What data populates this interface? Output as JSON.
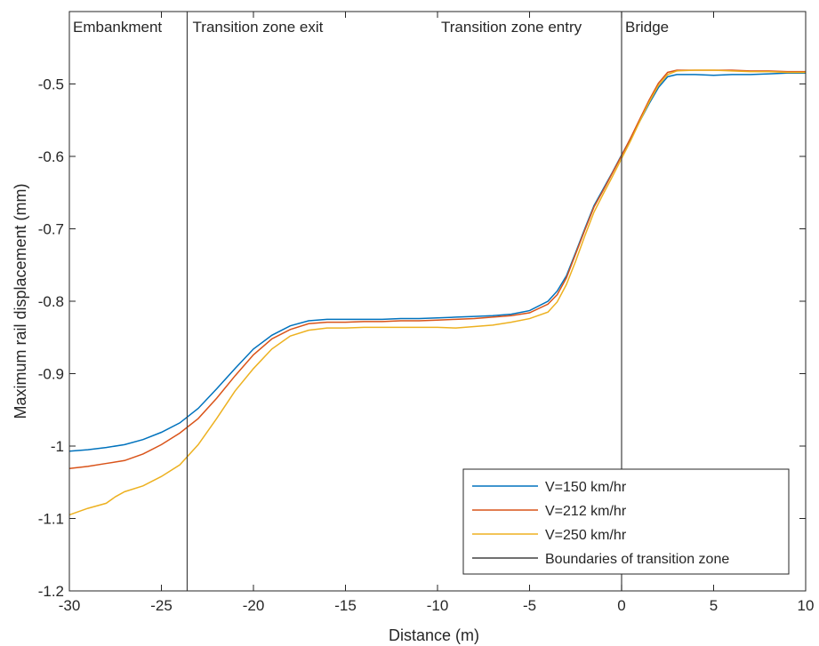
{
  "chart_data": {
    "type": "line",
    "title": "",
    "xlabel": "Distance (m)",
    "ylabel": "Maximum rail displacement (mm)",
    "xlim": [
      -30,
      10
    ],
    "ylim": [
      -1.2,
      -0.4
    ],
    "xticks": [
      -30,
      -25,
      -20,
      -15,
      -10,
      -5,
      0,
      5,
      10
    ],
    "yticks": [
      -1.2,
      -1.1,
      -1,
      -0.9,
      -0.8,
      -0.7,
      -0.6,
      -0.5
    ],
    "x_tick_labels": [
      "-30",
      "-25",
      "-20",
      "-15",
      "-10",
      "-5",
      "0",
      "5",
      "10"
    ],
    "y_tick_labels": [
      "-1.2",
      "-1.1",
      "-1",
      "-0.9",
      "-0.8",
      "-0.7",
      "-0.6",
      "-0.5"
    ],
    "grid": false,
    "legend_position": "bottom-right",
    "region_labels": [
      {
        "text": "Embankment",
        "x": -30
      },
      {
        "text": "Transition zone exit",
        "x": -23.5
      },
      {
        "text": "Transition zone entry",
        "x": -10
      },
      {
        "text": "Bridge",
        "x": 0
      }
    ],
    "boundaries": {
      "name": "Boundaries of transition zone",
      "color": "#404040",
      "x": [
        -23.6,
        0
      ]
    },
    "series": [
      {
        "name": "V=150 km/hr",
        "color": "#0072BD",
        "points": [
          [
            -30,
            -1.007
          ],
          [
            -29,
            -1.005
          ],
          [
            -28,
            -1.002
          ],
          [
            -27,
            -0.998
          ],
          [
            -26,
            -0.991
          ],
          [
            -25,
            -0.981
          ],
          [
            -24,
            -0.968
          ],
          [
            -23,
            -0.948
          ],
          [
            -22,
            -0.921
          ],
          [
            -21,
            -0.893
          ],
          [
            -20,
            -0.866
          ],
          [
            -19,
            -0.847
          ],
          [
            -18,
            -0.834
          ],
          [
            -17,
            -0.827
          ],
          [
            -16,
            -0.825
          ],
          [
            -15,
            -0.825
          ],
          [
            -14,
            -0.825
          ],
          [
            -13,
            -0.825
          ],
          [
            -12,
            -0.824
          ],
          [
            -11,
            -0.824
          ],
          [
            -10,
            -0.823
          ],
          [
            -9,
            -0.822
          ],
          [
            -8,
            -0.821
          ],
          [
            -7,
            -0.82
          ],
          [
            -6,
            -0.818
          ],
          [
            -5,
            -0.813
          ],
          [
            -4,
            -0.8
          ],
          [
            -3.5,
            -0.786
          ],
          [
            -3,
            -0.765
          ],
          [
            -2.5,
            -0.733
          ],
          [
            -2,
            -0.7
          ],
          [
            -1.5,
            -0.668
          ],
          [
            -1,
            -0.645
          ],
          [
            -0.5,
            -0.622
          ],
          [
            0,
            -0.598
          ],
          [
            0.5,
            -0.575
          ],
          [
            1,
            -0.551
          ],
          [
            1.5,
            -0.527
          ],
          [
            2,
            -0.505
          ],
          [
            2.5,
            -0.49
          ],
          [
            3,
            -0.487
          ],
          [
            4,
            -0.487
          ],
          [
            5,
            -0.488
          ],
          [
            6,
            -0.487
          ],
          [
            7,
            -0.487
          ],
          [
            8,
            -0.486
          ],
          [
            9,
            -0.485
          ],
          [
            10,
            -0.485
          ]
        ]
      },
      {
        "name": "V=212 km/hr",
        "color": "#D95319",
        "points": [
          [
            -30,
            -1.031
          ],
          [
            -29,
            -1.028
          ],
          [
            -28,
            -1.024
          ],
          [
            -27,
            -1.02
          ],
          [
            -26,
            -1.011
          ],
          [
            -25,
            -0.998
          ],
          [
            -24,
            -0.982
          ],
          [
            -23,
            -0.962
          ],
          [
            -22,
            -0.934
          ],
          [
            -21,
            -0.903
          ],
          [
            -20,
            -0.874
          ],
          [
            -19,
            -0.852
          ],
          [
            -18,
            -0.839
          ],
          [
            -17,
            -0.831
          ],
          [
            -16,
            -0.829
          ],
          [
            -15,
            -0.829
          ],
          [
            -14,
            -0.828
          ],
          [
            -13,
            -0.828
          ],
          [
            -12,
            -0.827
          ],
          [
            -11,
            -0.827
          ],
          [
            -10,
            -0.826
          ],
          [
            -9,
            -0.825
          ],
          [
            -8,
            -0.824
          ],
          [
            -7,
            -0.822
          ],
          [
            -6,
            -0.82
          ],
          [
            -5,
            -0.816
          ],
          [
            -4,
            -0.804
          ],
          [
            -3.5,
            -0.791
          ],
          [
            -3,
            -0.768
          ],
          [
            -2.5,
            -0.735
          ],
          [
            -2,
            -0.702
          ],
          [
            -1.5,
            -0.67
          ],
          [
            -1,
            -0.647
          ],
          [
            -0.5,
            -0.623
          ],
          [
            0,
            -0.599
          ],
          [
            0.5,
            -0.574
          ],
          [
            1,
            -0.548
          ],
          [
            1.5,
            -0.522
          ],
          [
            2,
            -0.499
          ],
          [
            2.5,
            -0.484
          ],
          [
            3,
            -0.481
          ],
          [
            4,
            -0.481
          ],
          [
            5,
            -0.481
          ],
          [
            6,
            -0.481
          ],
          [
            7,
            -0.482
          ],
          [
            8,
            -0.482
          ],
          [
            9,
            -0.483
          ],
          [
            10,
            -0.483
          ]
        ]
      },
      {
        "name": "V=250 km/hr",
        "color": "#EDB120",
        "points": [
          [
            -30,
            -1.095
          ],
          [
            -29,
            -1.086
          ],
          [
            -28,
            -1.079
          ],
          [
            -27.5,
            -1.07
          ],
          [
            -27,
            -1.063
          ],
          [
            -26,
            -1.055
          ],
          [
            -25,
            -1.042
          ],
          [
            -24,
            -1.026
          ],
          [
            -23,
            -0.998
          ],
          [
            -22,
            -0.962
          ],
          [
            -21,
            -0.924
          ],
          [
            -20,
            -0.893
          ],
          [
            -19,
            -0.866
          ],
          [
            -18,
            -0.848
          ],
          [
            -17,
            -0.84
          ],
          [
            -16,
            -0.837
          ],
          [
            -15,
            -0.837
          ],
          [
            -14,
            -0.836
          ],
          [
            -13,
            -0.836
          ],
          [
            -12,
            -0.836
          ],
          [
            -11,
            -0.836
          ],
          [
            -10,
            -0.836
          ],
          [
            -9,
            -0.837
          ],
          [
            -8,
            -0.835
          ],
          [
            -7,
            -0.833
          ],
          [
            -6,
            -0.829
          ],
          [
            -5,
            -0.824
          ],
          [
            -4,
            -0.815
          ],
          [
            -3.5,
            -0.801
          ],
          [
            -3,
            -0.777
          ],
          [
            -2.5,
            -0.745
          ],
          [
            -2,
            -0.71
          ],
          [
            -1.5,
            -0.677
          ],
          [
            -1,
            -0.652
          ],
          [
            -0.5,
            -0.628
          ],
          [
            0,
            -0.603
          ],
          [
            0.5,
            -0.578
          ],
          [
            1,
            -0.551
          ],
          [
            1.5,
            -0.525
          ],
          [
            2,
            -0.502
          ],
          [
            2.5,
            -0.487
          ],
          [
            3,
            -0.482
          ],
          [
            4,
            -0.481
          ],
          [
            5,
            -0.481
          ],
          [
            6,
            -0.482
          ],
          [
            7,
            -0.483
          ],
          [
            8,
            -0.483
          ],
          [
            9,
            -0.484
          ],
          [
            10,
            -0.484
          ]
        ]
      }
    ]
  }
}
